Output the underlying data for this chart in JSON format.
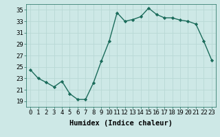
{
  "x": [
    0,
    1,
    2,
    3,
    4,
    5,
    6,
    7,
    8,
    9,
    10,
    11,
    12,
    13,
    14,
    15,
    16,
    17,
    18,
    19,
    20,
    21,
    22,
    23
  ],
  "y": [
    24.5,
    23.0,
    22.3,
    21.5,
    22.5,
    20.3,
    19.3,
    19.3,
    22.2,
    26.0,
    29.5,
    34.5,
    33.0,
    33.3,
    33.8,
    35.3,
    34.2,
    33.6,
    33.6,
    33.2,
    33.0,
    32.5,
    29.5,
    26.2
  ],
  "xlabel": "Humidex (Indice chaleur)",
  "ylim": [
    18,
    36
  ],
  "xlim": [
    -0.5,
    23.5
  ],
  "yticks": [
    19,
    21,
    23,
    25,
    27,
    29,
    31,
    33,
    35
  ],
  "xticks": [
    0,
    1,
    2,
    3,
    4,
    5,
    6,
    7,
    8,
    9,
    10,
    11,
    12,
    13,
    14,
    15,
    16,
    17,
    18,
    19,
    20,
    21,
    22,
    23
  ],
  "line_color": "#1a6b5a",
  "marker": "D",
  "marker_size": 2.2,
  "line_width": 1.0,
  "bg_color": "#cde8e6",
  "grid_color": "#b8d8d5",
  "tick_label_fontsize": 6.5,
  "xlabel_fontsize": 7.5
}
